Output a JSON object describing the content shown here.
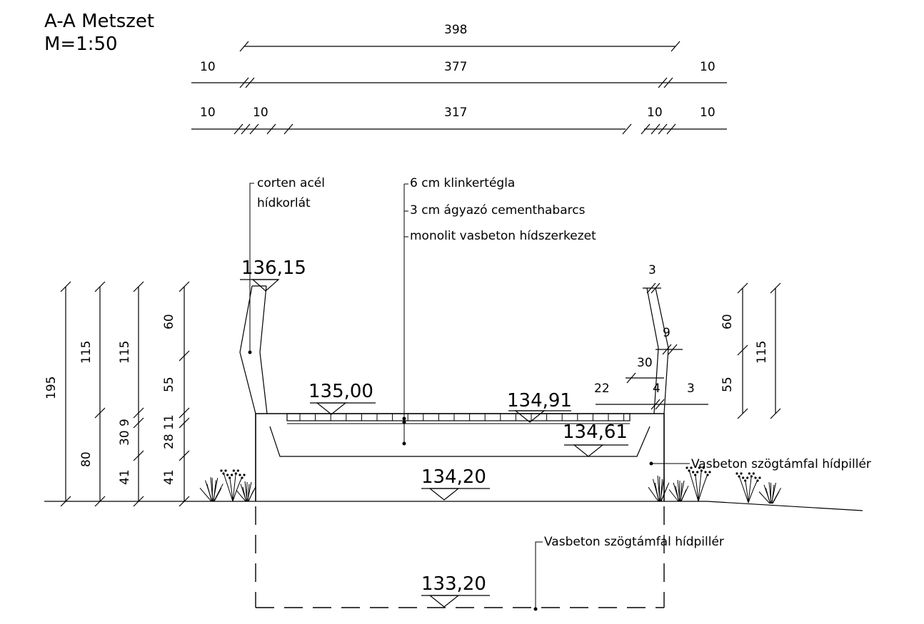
{
  "title": {
    "line1": "A-A Metszet",
    "line2": "M=1:50"
  },
  "top_dimensions": {
    "row1": {
      "middle": "398"
    },
    "row2": {
      "left": "10",
      "middle": "377",
      "right": "10"
    },
    "row3": {
      "left_a": "10",
      "left_b": "10",
      "middle": "317",
      "right_a": "10",
      "right_b": "10"
    }
  },
  "left_dimensions": {
    "total": "195",
    "upper_a": "115",
    "lower_a": "80",
    "upper_b": "115",
    "mid_b": "30 9",
    "lower_b": "41",
    "c_60": "60",
    "c_55": "55",
    "c_11": "28 11",
    "c_41": "41"
  },
  "right_dimensions": {
    "top": "3",
    "r_9": "9",
    "r_30": "30",
    "r_22": "22",
    "r_4": "4",
    "r_3": "3",
    "v_60": "60",
    "v_55": "55",
    "v_115": "115"
  },
  "levels": {
    "railing_top": "136,15",
    "deck_left": "135,00",
    "deck_right": "134,91",
    "deck_bottom": "134,61",
    "ground": "134,20",
    "foundation": "133,20"
  },
  "annotations": {
    "railing_1": "corten acél",
    "railing_2": "hídkorlát",
    "layer_1": "6 cm klinkertégla",
    "layer_2": "3 cm ágyazó cementhabarcs",
    "layer_3": "monolit vasbeton hídszerkezet",
    "pier_upper": "Vasbeton szögtámfal hídpillér",
    "pier_lower": "Vasbeton szögtámfal hídpillér"
  }
}
